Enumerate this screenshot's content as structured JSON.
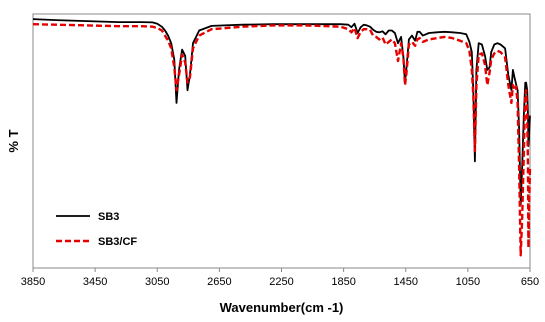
{
  "chart_data": {
    "type": "line",
    "title": "",
    "xlabel": "Wavenumber(cm -1)",
    "ylabel": "% T",
    "xlim": [
      3850,
      650
    ],
    "x_reversed": true,
    "xticks": [
      3850,
      3450,
      3050,
      2650,
      2250,
      1850,
      1450,
      1050,
      650
    ],
    "ylim": [
      0,
      100
    ],
    "grid": false,
    "legend_position": "bottom-left",
    "series": [
      {
        "name": "SB3",
        "color": "#000000",
        "dash": "solid",
        "x": [
          3850,
          3700,
          3500,
          3300,
          3150,
          3080,
          3050,
          3020,
          3000,
          2980,
          2960,
          2940,
          2926,
          2910,
          2890,
          2870,
          2855,
          2840,
          2820,
          2780,
          2700,
          2500,
          2300,
          2100,
          1950,
          1870,
          1820,
          1800,
          1780,
          1760,
          1740,
          1720,
          1700,
          1680,
          1660,
          1640,
          1620,
          1600,
          1580,
          1560,
          1540,
          1520,
          1500,
          1480,
          1465,
          1455,
          1445,
          1430,
          1410,
          1390,
          1375,
          1360,
          1340,
          1300,
          1250,
          1200,
          1150,
          1100,
          1060,
          1040,
          1025,
          1015,
          1005,
          995,
          980,
          960,
          940,
          925,
          910,
          900,
          880,
          860,
          840,
          810,
          790,
          770,
          760,
          750,
          740,
          730,
          720,
          710,
          700,
          690,
          680,
          675,
          668,
          663,
          660,
          655,
          650
        ],
        "y": [
          98,
          97.6,
          97.2,
          96.8,
          96.8,
          96.7,
          96.2,
          95.0,
          93.5,
          91.5,
          88.5,
          82,
          65,
          78,
          86,
          83.5,
          70,
          76,
          88.5,
          93.5,
          95.3,
          95.8,
          96.0,
          96.0,
          96.0,
          96.0,
          95.8,
          94.8,
          96.2,
          92.5,
          94.8,
          95.8,
          95.5,
          95.0,
          93.8,
          93.0,
          92.8,
          93.2,
          92.0,
          93.5,
          93.5,
          92.5,
          88.5,
          91.0,
          83,
          73,
          79,
          90,
          91.5,
          89.5,
          93.0,
          93.0,
          91.5,
          92.5,
          92.8,
          93.0,
          92.8,
          92.5,
          92.0,
          89.0,
          85,
          70,
          42,
          78,
          88.5,
          88.0,
          83.5,
          78,
          79,
          85,
          88.0,
          88.5,
          88.0,
          86.5,
          76,
          70,
          78,
          75,
          72.5,
          70,
          55,
          25,
          40,
          60,
          73.0,
          73.0,
          70,
          60,
          48,
          53,
          60
        ]
      },
      {
        "name": "SB3/CF",
        "color": "#e60000",
        "dash": "dashed",
        "x": [
          3850,
          3700,
          3500,
          3300,
          3150,
          3080,
          3050,
          3020,
          3000,
          2980,
          2960,
          2940,
          2926,
          2910,
          2890,
          2870,
          2855,
          2840,
          2820,
          2780,
          2700,
          2500,
          2300,
          2100,
          1950,
          1870,
          1820,
          1800,
          1780,
          1760,
          1740,
          1720,
          1700,
          1680,
          1660,
          1640,
          1620,
          1600,
          1580,
          1560,
          1540,
          1520,
          1500,
          1480,
          1465,
          1455,
          1445,
          1430,
          1410,
          1390,
          1375,
          1360,
          1340,
          1300,
          1250,
          1200,
          1150,
          1100,
          1060,
          1040,
          1025,
          1015,
          1005,
          995,
          980,
          960,
          940,
          925,
          910,
          900,
          880,
          860,
          840,
          810,
          790,
          770,
          760,
          750,
          740,
          730,
          720,
          710,
          700,
          690,
          680,
          675,
          668,
          663,
          660,
          655,
          650
        ],
        "y": [
          96,
          95.8,
          95.5,
          95.2,
          95.2,
          95.0,
          94.5,
          93.5,
          91.5,
          89.5,
          86.5,
          79,
          70,
          76,
          84,
          81,
          73,
          75,
          86.5,
          91.5,
          94.0,
          95.0,
          95.5,
          95.5,
          95.2,
          95.0,
          94.0,
          92.8,
          94.5,
          90.5,
          93.0,
          94.0,
          94.0,
          93.8,
          91.5,
          91.0,
          90.0,
          90.8,
          88.0,
          89.0,
          90.0,
          88.5,
          81.5,
          88.5,
          83,
          72,
          77,
          88.0,
          89.0,
          87.5,
          90.0,
          90.5,
          89.0,
          90.0,
          90.5,
          91.0,
          90.5,
          89.5,
          88.5,
          85.5,
          78,
          68,
          46,
          72,
          84.0,
          84.5,
          80.0,
          72,
          77,
          82,
          84.5,
          85.5,
          85.0,
          83.0,
          72,
          65,
          72,
          70,
          71.5,
          65,
          40,
          5,
          20,
          45,
          68.0,
          70.0,
          60,
          40,
          8,
          25,
          40
        ]
      }
    ]
  }
}
